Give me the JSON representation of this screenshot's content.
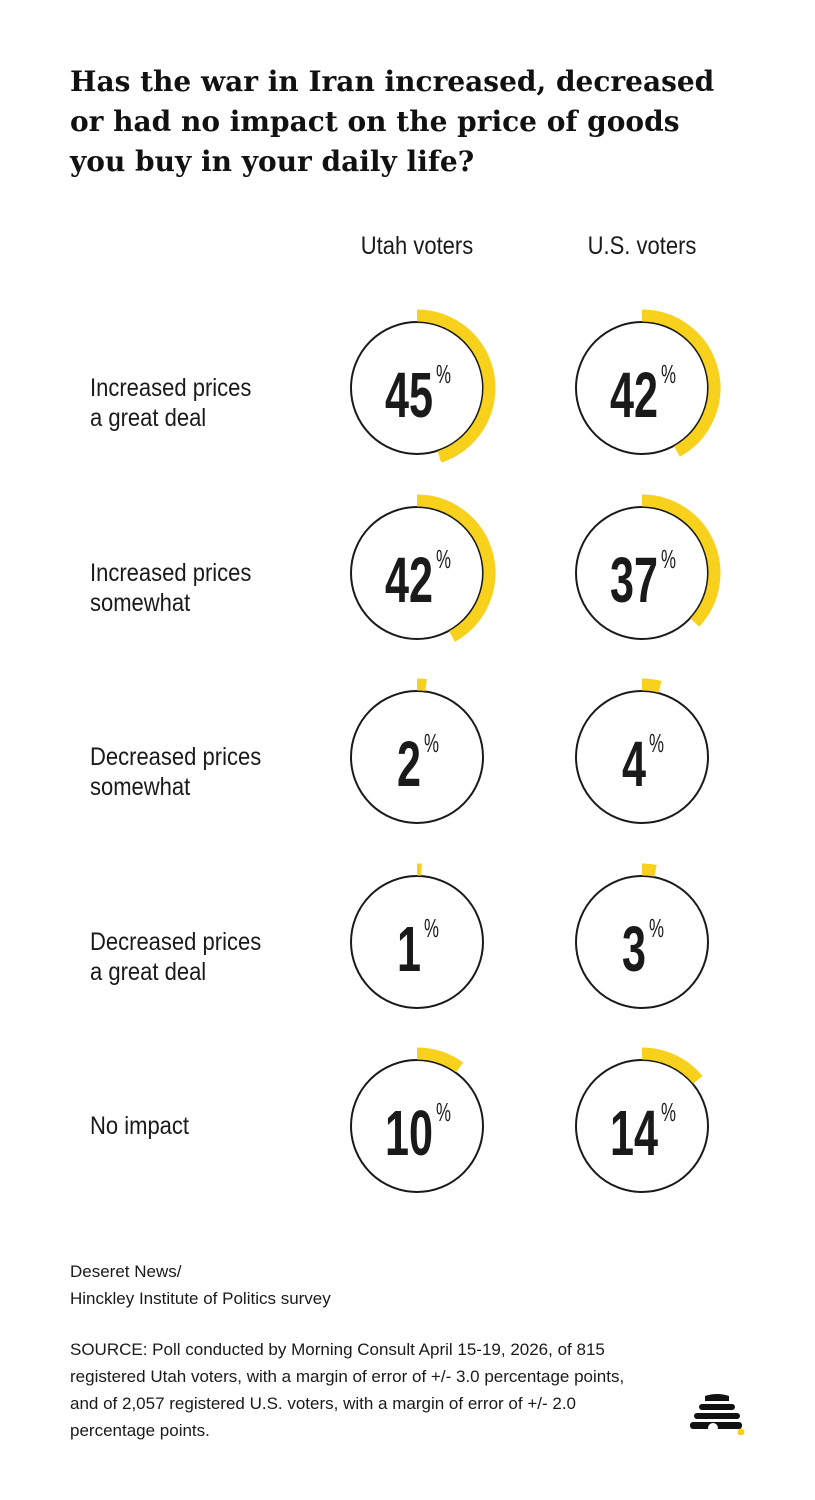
{
  "title": "Has the war in Iran increased, decreased or had no impact on the price of goods you buy in your daily life?",
  "columns": [
    "Utah voters",
    "U.S. voters"
  ],
  "rows": [
    {
      "label": "Increased prices\na great deal"
    },
    {
      "label": "Increased prices\nsomewhat"
    },
    {
      "label": "Decreased prices\nsomewhat"
    },
    {
      "label": "Decreased prices\na great deal"
    },
    {
      "label": "No impact"
    }
  ],
  "chart_data": {
    "type": "donut-grid",
    "unit": "%",
    "categories": [
      "Increased prices a great deal",
      "Increased prices somewhat",
      "Decreased prices somewhat",
      "Decreased prices a great deal",
      "No impact"
    ],
    "series": [
      {
        "name": "Utah voters",
        "values": [
          45,
          42,
          2,
          1,
          10
        ]
      },
      {
        "name": "U.S. voters",
        "values": [
          42,
          37,
          4,
          3,
          14
        ]
      }
    ]
  },
  "colors": {
    "accent": "#f7d11b",
    "text": "#1a1a1a",
    "ring": "#1a1a1a"
  },
  "footer": {
    "credit": "Deseret News/\nHinckley Institute of Politics survey",
    "source": "SOURCE: Poll conducted by Morning Consult April 15-19, 2026, of 815 registered Utah voters, with a margin of error of +/- 3.0 percentage points, and of 2,057 registered U.S.  voters, with a margin of error of +/- 2.0 percentage points."
  },
  "logo_icon": "beehive-icon"
}
